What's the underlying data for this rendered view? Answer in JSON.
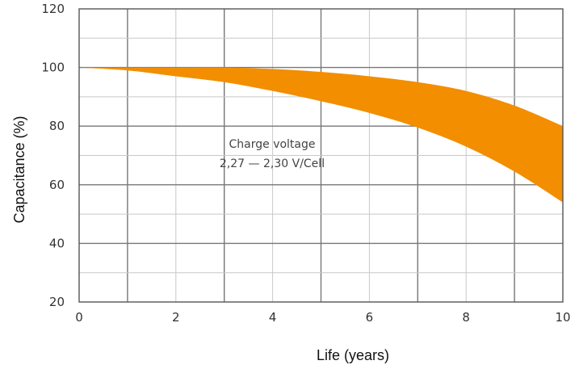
{
  "chart_data": {
    "type": "area",
    "title": "",
    "xlabel": "Life (years)",
    "ylabel": "Capacitance (%)",
    "xlim": [
      0,
      10
    ],
    "ylim": [
      20,
      120
    ],
    "x_ticks": [
      "0",
      "2",
      "4",
      "6",
      "8",
      "10"
    ],
    "y_ticks": [
      "120",
      "100",
      "80",
      "60",
      "40",
      "20"
    ],
    "grid": true,
    "x": [
      0,
      1,
      2,
      3,
      4,
      5,
      6,
      7,
      8,
      9,
      10
    ],
    "series": [
      {
        "role": "upper",
        "values": [
          100,
          100,
          100,
          100,
          99.5,
          98.5,
          97,
          95,
          92,
          87,
          80
        ]
      },
      {
        "role": "lower",
        "values": [
          100,
          99,
          97,
          95,
          92,
          88.5,
          84.5,
          79.5,
          73,
          64.5,
          54
        ]
      }
    ],
    "annotation": [
      "Charge voltage",
      "2,27 — 2,30 V/Cell"
    ],
    "colors": {
      "band": "#f28e00",
      "grid_line": "#c8c8c8",
      "grid_line_major": "#777777",
      "border": "#555555"
    }
  }
}
